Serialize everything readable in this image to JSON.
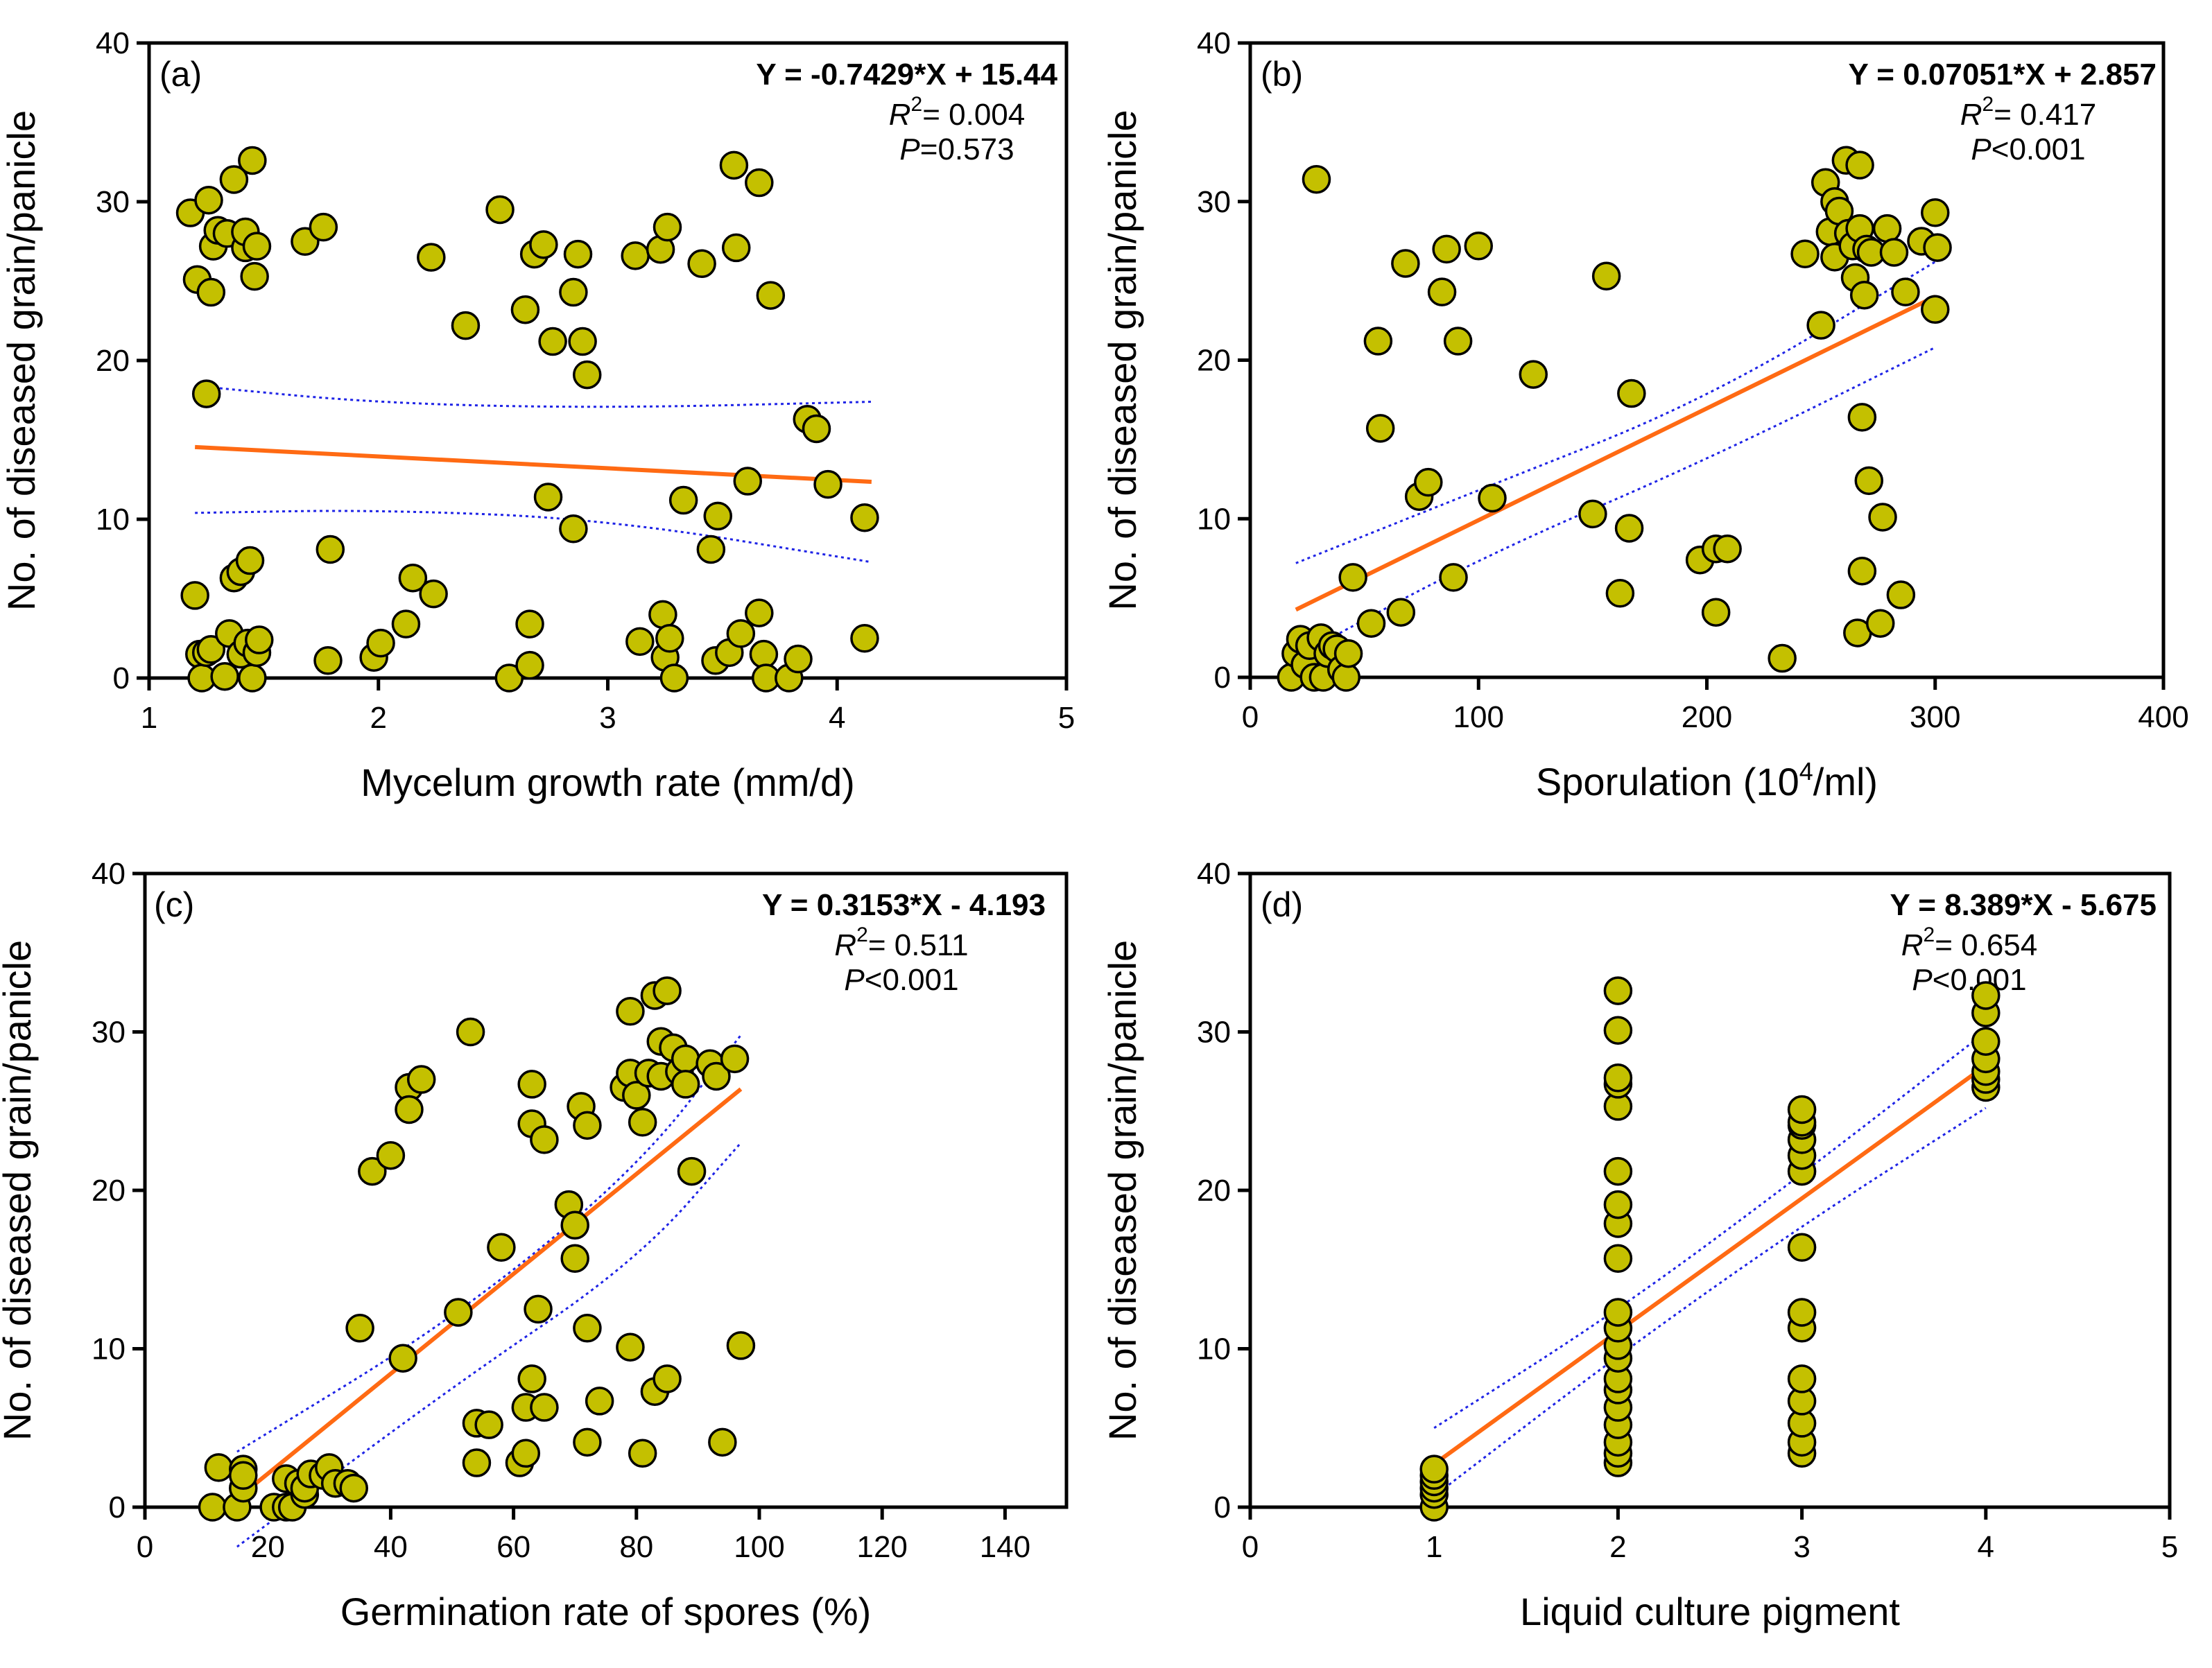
{
  "figure": {
    "point_color": "#c4c000",
    "point_stroke": "#000000",
    "fit_color": "#ff6a13",
    "ci_color": "#1f24e6"
  },
  "chart_data": [
    {
      "type": "scatter",
      "panel": "(a)",
      "xlabel": "Mycelum growth rate (mm/d)",
      "ylabel": "No. of diseased grain/panicle",
      "xlim": [
        1,
        5
      ],
      "ylim": [
        0,
        40
      ],
      "xticks": [
        1,
        2,
        3,
        4,
        5
      ],
      "yticks": [
        0,
        10,
        20,
        30,
        40
      ],
      "equation": "Y = -0.7429*X + 15.44",
      "r2_label": "R",
      "r2_sup": "2",
      "r2_value": "= 0.004",
      "p_label": "P",
      "p_value": "=0.573",
      "fit": {
        "slope": -0.7429,
        "intercept": 15.44,
        "x_range": [
          1.2,
          4.15
        ]
      },
      "ci_upper": [
        [
          1.2,
          18.4
        ],
        [
          2.0,
          17.3
        ],
        [
          3.0,
          17.0
        ],
        [
          4.15,
          17.4
        ]
      ],
      "ci_lower": [
        [
          1.2,
          10.4
        ],
        [
          2.0,
          10.6
        ],
        [
          3.0,
          10.0
        ],
        [
          4.15,
          7.3
        ]
      ],
      "points": [
        [
          1.18,
          29.3
        ],
        [
          1.21,
          25.1
        ],
        [
          1.26,
          30.1
        ],
        [
          1.27,
          24.3
        ],
        [
          1.28,
          27.2
        ],
        [
          1.3,
          28.2
        ],
        [
          1.34,
          28.0
        ],
        [
          1.37,
          31.4
        ],
        [
          1.42,
          27.1
        ],
        [
          1.42,
          28.1
        ],
        [
          1.45,
          32.6
        ],
        [
          1.46,
          25.3
        ],
        [
          1.47,
          27.2
        ],
        [
          1.25,
          17.9
        ],
        [
          1.2,
          5.2
        ],
        [
          1.22,
          1.5
        ],
        [
          1.23,
          0.0
        ],
        [
          1.25,
          1.6
        ],
        [
          1.27,
          1.8
        ],
        [
          1.33,
          0.1
        ],
        [
          1.35,
          2.8
        ],
        [
          1.37,
          6.3
        ],
        [
          1.4,
          6.7
        ],
        [
          1.4,
          1.5
        ],
        [
          1.43,
          2.2
        ],
        [
          1.44,
          7.4
        ],
        [
          1.45,
          0.0
        ],
        [
          1.47,
          1.6
        ],
        [
          1.48,
          2.4
        ],
        [
          1.68,
          27.5
        ],
        [
          1.76,
          28.4
        ],
        [
          1.78,
          1.1
        ],
        [
          1.79,
          8.1
        ],
        [
          1.98,
          1.3
        ],
        [
          2.01,
          2.2
        ],
        [
          2.12,
          3.4
        ],
        [
          2.15,
          6.3
        ],
        [
          2.23,
          26.5
        ],
        [
          2.24,
          5.3
        ],
        [
          2.38,
          22.2
        ],
        [
          2.53,
          29.5
        ],
        [
          2.57,
          0.0
        ],
        [
          2.64,
          23.2
        ],
        [
          2.66,
          3.4
        ],
        [
          2.66,
          0.8
        ],
        [
          2.68,
          26.7
        ],
        [
          2.72,
          27.3
        ],
        [
          2.74,
          11.4
        ],
        [
          2.76,
          21.2
        ],
        [
          2.85,
          24.3
        ],
        [
          2.85,
          9.4
        ],
        [
          2.87,
          26.7
        ],
        [
          2.89,
          21.2
        ],
        [
          2.91,
          19.1
        ],
        [
          3.12,
          26.6
        ],
        [
          3.14,
          2.3
        ],
        [
          3.23,
          27.0
        ],
        [
          3.24,
          4.0
        ],
        [
          3.25,
          1.3
        ],
        [
          3.26,
          28.4
        ],
        [
          3.27,
          2.5
        ],
        [
          3.29,
          0.0
        ],
        [
          3.33,
          11.2
        ],
        [
          3.41,
          26.1
        ],
        [
          3.45,
          8.1
        ],
        [
          3.47,
          1.1
        ],
        [
          3.48,
          10.2
        ],
        [
          3.53,
          1.6
        ],
        [
          3.55,
          32.3
        ],
        [
          3.56,
          27.1
        ],
        [
          3.58,
          2.8
        ],
        [
          3.61,
          12.4
        ],
        [
          3.66,
          31.2
        ],
        [
          3.66,
          4.1
        ],
        [
          3.68,
          1.5
        ],
        [
          3.69,
          0.0
        ],
        [
          3.71,
          24.1
        ],
        [
          3.79,
          0.0
        ],
        [
          3.83,
          1.2
        ],
        [
          3.87,
          16.3
        ],
        [
          3.91,
          15.7
        ],
        [
          3.96,
          12.2
        ],
        [
          4.12,
          10.1
        ],
        [
          4.12,
          2.5
        ]
      ]
    },
    {
      "type": "scatter",
      "panel": "(b)",
      "xlabel": "Sporulation (10",
      "xlabel_sup": "4",
      "xlabel_tail": "/ml)",
      "ylabel": "No. of diseased grain/panicle",
      "xlim": [
        0,
        400
      ],
      "ylim": [
        0,
        40
      ],
      "xticks": [
        0,
        100,
        200,
        300,
        400
      ],
      "yticks": [
        0,
        10,
        20,
        30,
        40
      ],
      "equation": "Y = 0.07051*X + 2.857",
      "r2_label": "R",
      "r2_sup": "2",
      "r2_value": "= 0.417",
      "p_label": "P",
      "p_value": "<0.001",
      "fit": {
        "slope": 0.07051,
        "intercept": 2.857,
        "x_range": [
          20,
          300
        ]
      },
      "ci_upper": [
        [
          20,
          7.2
        ],
        [
          100,
          11.8
        ],
        [
          200,
          17.5
        ],
        [
          300,
          26.2
        ]
      ],
      "ci_lower": [
        [
          20,
          1.3
        ],
        [
          100,
          7.5
        ],
        [
          200,
          13.7
        ],
        [
          300,
          20.8
        ]
      ],
      "points": [
        [
          18,
          0.0
        ],
        [
          20,
          1.5
        ],
        [
          22,
          2.4
        ],
        [
          24,
          0.8
        ],
        [
          26,
          2.0
        ],
        [
          28,
          0.0
        ],
        [
          29,
          31.4
        ],
        [
          31,
          2.5
        ],
        [
          32,
          0.0
        ],
        [
          34,
          1.5
        ],
        [
          36,
          2.0
        ],
        [
          38,
          1.8
        ],
        [
          40,
          0.5
        ],
        [
          42,
          0.0
        ],
        [
          43,
          1.5
        ],
        [
          45,
          6.3
        ],
        [
          53,
          3.4
        ],
        [
          56,
          21.2
        ],
        [
          57,
          15.7
        ],
        [
          66,
          4.1
        ],
        [
          68,
          26.1
        ],
        [
          74,
          11.4
        ],
        [
          78,
          12.3
        ],
        [
          84,
          24.3
        ],
        [
          86,
          27.0
        ],
        [
          89,
          6.3
        ],
        [
          91,
          21.2
        ],
        [
          100,
          27.2
        ],
        [
          106,
          11.3
        ],
        [
          124,
          19.1
        ],
        [
          150,
          10.3
        ],
        [
          156,
          25.3
        ],
        [
          162,
          5.3
        ],
        [
          166,
          9.4
        ],
        [
          167,
          17.9
        ],
        [
          197,
          7.4
        ],
        [
          204,
          8.1
        ],
        [
          204,
          4.1
        ],
        [
          209,
          8.1
        ],
        [
          233,
          1.2
        ],
        [
          243,
          26.7
        ],
        [
          250,
          22.2
        ],
        [
          252,
          31.2
        ],
        [
          254,
          28.1
        ],
        [
          256,
          26.5
        ],
        [
          256,
          30.0
        ],
        [
          258,
          29.4
        ],
        [
          261,
          32.6
        ],
        [
          262,
          28.0
        ],
        [
          264,
          27.2
        ],
        [
          265,
          25.2
        ],
        [
          266,
          2.8
        ],
        [
          267,
          28.3
        ],
        [
          267,
          32.3
        ],
        [
          268,
          16.4
        ],
        [
          268,
          6.7
        ],
        [
          269,
          24.1
        ],
        [
          270,
          27.0
        ],
        [
          271,
          12.4
        ],
        [
          272,
          26.8
        ],
        [
          276,
          3.4
        ],
        [
          277,
          10.1
        ],
        [
          279,
          28.3
        ],
        [
          282,
          26.8
        ],
        [
          285,
          5.2
        ],
        [
          287,
          24.3
        ],
        [
          294,
          27.5
        ],
        [
          300,
          23.2
        ],
        [
          300,
          29.3
        ],
        [
          301,
          27.1
        ]
      ]
    },
    {
      "type": "scatter",
      "panel": "(c)",
      "xlabel": "Germination rate of spores (%)",
      "ylabel": "No. of diseased grain/panicle",
      "xlim": [
        0,
        150
      ],
      "ylim": [
        0,
        40
      ],
      "xticks": [
        0,
        20,
        40,
        60,
        80,
        100,
        120,
        140
      ],
      "yticks": [
        0,
        10,
        20,
        30,
        40
      ],
      "equation": "Y = 0.3153*X - 4.193",
      "r2_label": "R",
      "r2_sup": "2",
      "r2_value": "= 0.511",
      "p_label": "P",
      "p_value": "<0.001",
      "fit": {
        "slope": 0.3153,
        "intercept": -4.193,
        "x_range": [
          17,
          97
        ]
      },
      "ci_upper": [
        [
          15,
          3.5
        ],
        [
          50,
          11.8
        ],
        [
          80,
          21.3
        ],
        [
          97,
          29.8
        ]
      ],
      "ci_lower": [
        [
          15,
          -2.5
        ],
        [
          50,
          7.6
        ],
        [
          80,
          15.5
        ],
        [
          97,
          23.0
        ]
      ],
      "points": [
        [
          11,
          0.0
        ],
        [
          12,
          2.5
        ],
        [
          15,
          0.0
        ],
        [
          16,
          2.4
        ],
        [
          16,
          1.2
        ],
        [
          16,
          2.0
        ],
        [
          21,
          0.0
        ],
        [
          23,
          1.8
        ],
        [
          23,
          0.0
        ],
        [
          24,
          0.0
        ],
        [
          25,
          1.5
        ],
        [
          26,
          0.8
        ],
        [
          26,
          1.2
        ],
        [
          27,
          2.1
        ],
        [
          29,
          2.0
        ],
        [
          30,
          2.5
        ],
        [
          31,
          1.5
        ],
        [
          33,
          1.5
        ],
        [
          34,
          1.2
        ],
        [
          35,
          11.3
        ],
        [
          37,
          21.2
        ],
        [
          40,
          22.2
        ],
        [
          43,
          26.5
        ],
        [
          43,
          25.1
        ],
        [
          45,
          27.0
        ],
        [
          42,
          9.4
        ],
        [
          51,
          12.3
        ],
        [
          53,
          30.0
        ],
        [
          54,
          5.3
        ],
        [
          54,
          2.8
        ],
        [
          56,
          5.2
        ],
        [
          58,
          16.4
        ],
        [
          61,
          2.8
        ],
        [
          62,
          6.3
        ],
        [
          62,
          3.4
        ],
        [
          63,
          26.7
        ],
        [
          63,
          24.2
        ],
        [
          63,
          8.1
        ],
        [
          64,
          12.5
        ],
        [
          65,
          23.2
        ],
        [
          65,
          6.3
        ],
        [
          69,
          19.1
        ],
        [
          70,
          17.8
        ],
        [
          70,
          15.7
        ],
        [
          71,
          25.3
        ],
        [
          72,
          24.1
        ],
        [
          72,
          11.3
        ],
        [
          72,
          4.1
        ],
        [
          74,
          6.7
        ],
        [
          78,
          26.5
        ],
        [
          79,
          27.4
        ],
        [
          79,
          10.1
        ],
        [
          79,
          31.3
        ],
        [
          80,
          26.0
        ],
        [
          81,
          24.3
        ],
        [
          81,
          3.4
        ],
        [
          82,
          27.4
        ],
        [
          83,
          32.3
        ],
        [
          83,
          7.3
        ],
        [
          84,
          29.4
        ],
        [
          84,
          27.2
        ],
        [
          85,
          32.6
        ],
        [
          85,
          8.1
        ],
        [
          86,
          29.0
        ],
        [
          87,
          27.5
        ],
        [
          88,
          28.3
        ],
        [
          88,
          26.7
        ],
        [
          89,
          21.2
        ],
        [
          92,
          28.0
        ],
        [
          93,
          27.2
        ],
        [
          94,
          4.1
        ],
        [
          96,
          28.3
        ],
        [
          97,
          10.2
        ]
      ]
    },
    {
      "type": "scatter",
      "panel": "(d)",
      "xlabel": "Liquid culture pigment",
      "ylabel": "No. of diseased grain/panicle",
      "xlim": [
        0,
        5
      ],
      "ylim": [
        0,
        40
      ],
      "xticks": [
        0,
        1,
        2,
        3,
        4,
        5
      ],
      "yticks": [
        0,
        10,
        20,
        30,
        40
      ],
      "equation": "Y = 8.389*X - 5.675",
      "r2_label": "R",
      "r2_sup": "2",
      "r2_value": "= 0.654",
      "p_label": "P",
      "p_value": "<0.001",
      "fit": {
        "slope": 8.389,
        "intercept": -5.675,
        "x_range": [
          1,
          4
        ]
      },
      "ci_upper": [
        [
          1,
          5.0
        ],
        [
          2,
          12.4
        ],
        [
          3,
          21.0
        ],
        [
          4,
          30.0
        ]
      ],
      "ci_lower": [
        [
          1,
          0.7
        ],
        [
          2,
          9.6
        ],
        [
          3,
          17.8
        ],
        [
          4,
          25.2
        ]
      ],
      "points": [
        [
          1,
          0.0
        ],
        [
          1,
          0.8
        ],
        [
          1,
          1.2
        ],
        [
          1,
          1.6
        ],
        [
          1,
          2.0
        ],
        [
          1,
          2.4
        ],
        [
          2,
          2.8
        ],
        [
          2,
          3.4
        ],
        [
          2,
          4.1
        ],
        [
          2,
          5.2
        ],
        [
          2,
          6.3
        ],
        [
          2,
          7.4
        ],
        [
          2,
          8.1
        ],
        [
          2,
          9.4
        ],
        [
          2,
          10.2
        ],
        [
          2,
          11.3
        ],
        [
          2,
          12.3
        ],
        [
          2,
          15.7
        ],
        [
          2,
          17.9
        ],
        [
          2,
          19.1
        ],
        [
          2,
          21.2
        ],
        [
          2,
          25.3
        ],
        [
          2,
          26.7
        ],
        [
          2,
          27.1
        ],
        [
          2,
          30.1
        ],
        [
          2,
          32.6
        ],
        [
          3,
          3.4
        ],
        [
          3,
          4.1
        ],
        [
          3,
          5.3
        ],
        [
          3,
          6.7
        ],
        [
          3,
          8.1
        ],
        [
          3,
          11.3
        ],
        [
          3,
          12.3
        ],
        [
          3,
          16.4
        ],
        [
          3,
          21.2
        ],
        [
          3,
          22.2
        ],
        [
          3,
          23.2
        ],
        [
          3,
          24.1
        ],
        [
          3,
          24.3
        ],
        [
          3,
          25.1
        ],
        [
          4,
          26.5
        ],
        [
          4,
          27.0
        ],
        [
          4,
          27.5
        ],
        [
          4,
          28.3
        ],
        [
          4,
          29.4
        ],
        [
          4,
          31.2
        ],
        [
          4,
          32.3
        ]
      ]
    }
  ]
}
